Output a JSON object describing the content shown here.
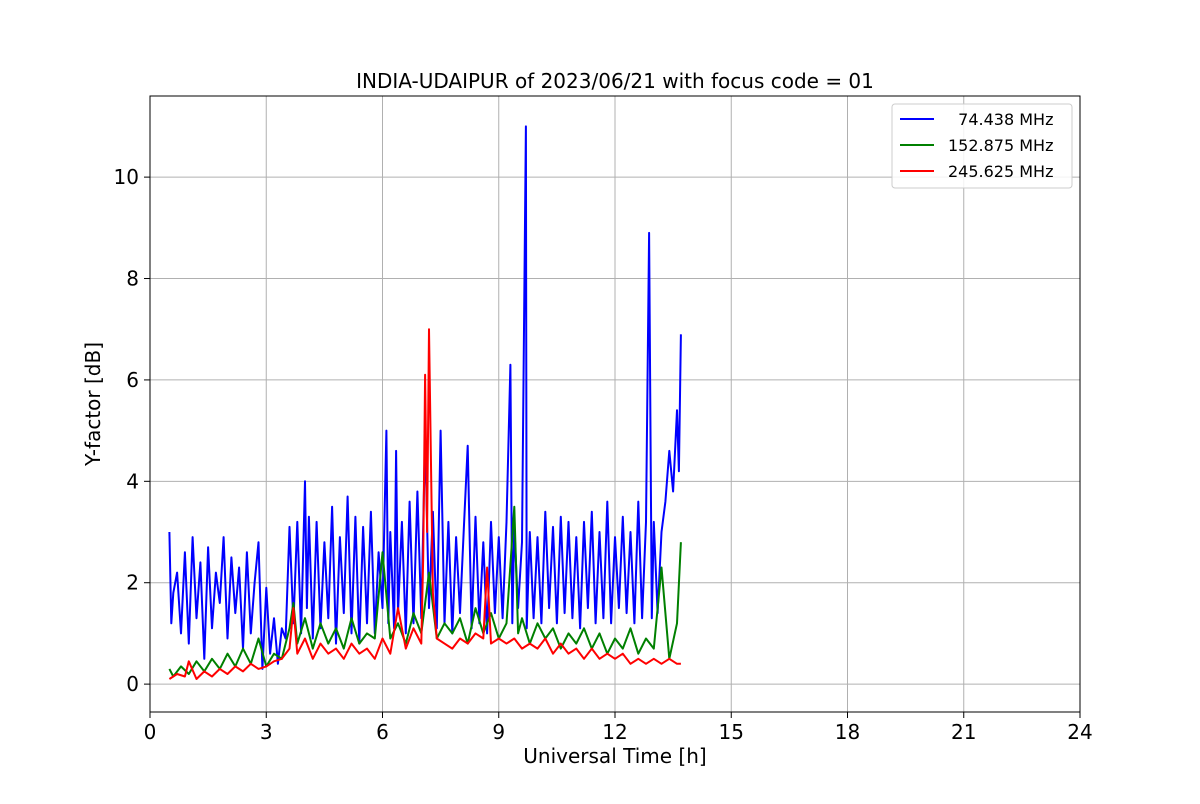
{
  "chart_data": {
    "type": "line",
    "title": "INDIA-UDAIPUR of 2023/06/21 with focus code = 01",
    "xlabel": "Universal Time [h]",
    "ylabel": "Y-factor [dB]",
    "xlim": [
      0,
      24
    ],
    "ylim": [
      -0.55,
      11.6
    ],
    "xticks": [
      0,
      3,
      6,
      9,
      12,
      15,
      18,
      21,
      24
    ],
    "yticks": [
      0,
      2,
      4,
      6,
      8,
      10
    ],
    "xtick_labels": [
      "0",
      "3",
      "6",
      "9",
      "12",
      "15",
      "18",
      "21",
      "24"
    ],
    "ytick_labels": [
      "0",
      "2",
      "4",
      "6",
      "8",
      "10"
    ],
    "grid": true,
    "legend_position": "top-right",
    "series": [
      {
        "name": "  74.438 MHz",
        "color": "#0000ff",
        "x": [
          0.5,
          0.55,
          0.6,
          0.7,
          0.8,
          0.9,
          1.0,
          1.1,
          1.2,
          1.3,
          1.4,
          1.5,
          1.6,
          1.7,
          1.8,
          1.9,
          2.0,
          2.1,
          2.2,
          2.3,
          2.4,
          2.5,
          2.6,
          2.7,
          2.8,
          2.9,
          3.0,
          3.1,
          3.2,
          3.3,
          3.4,
          3.5,
          3.6,
          3.7,
          3.8,
          3.9,
          4.0,
          4.05,
          4.1,
          4.2,
          4.3,
          4.4,
          4.5,
          4.6,
          4.7,
          4.8,
          4.9,
          5.0,
          5.1,
          5.2,
          5.3,
          5.4,
          5.5,
          5.6,
          5.7,
          5.8,
          5.9,
          6.0,
          6.1,
          6.15,
          6.2,
          6.3,
          6.35,
          6.4,
          6.5,
          6.6,
          6.7,
          6.8,
          6.9,
          7.0,
          7.1,
          7.2,
          7.3,
          7.4,
          7.5,
          7.6,
          7.7,
          7.8,
          7.9,
          8.0,
          8.1,
          8.2,
          8.3,
          8.4,
          8.5,
          8.6,
          8.7,
          8.8,
          8.9,
          9.0,
          9.1,
          9.2,
          9.3,
          9.35,
          9.4,
          9.5,
          9.6,
          9.7,
          9.72,
          9.8,
          9.9,
          10.0,
          10.1,
          10.2,
          10.3,
          10.4,
          10.5,
          10.6,
          10.7,
          10.8,
          10.9,
          11.0,
          11.1,
          11.2,
          11.3,
          11.4,
          11.5,
          11.6,
          11.7,
          11.8,
          11.9,
          12.0,
          12.1,
          12.2,
          12.3,
          12.4,
          12.5,
          12.6,
          12.7,
          12.8,
          12.88,
          12.95,
          13.0,
          13.1,
          13.2,
          13.3,
          13.4,
          13.5,
          13.6,
          13.65,
          13.7
        ],
        "y": [
          3.0,
          1.2,
          1.8,
          2.2,
          1.0,
          2.6,
          0.8,
          2.9,
          1.3,
          2.4,
          0.5,
          2.7,
          1.1,
          2.2,
          1.6,
          2.9,
          0.9,
          2.5,
          1.4,
          2.3,
          0.7,
          2.6,
          1.0,
          2.0,
          2.8,
          0.3,
          1.9,
          0.6,
          1.3,
          0.4,
          1.1,
          0.9,
          3.1,
          1.2,
          3.2,
          1.0,
          4.0,
          1.5,
          3.3,
          0.9,
          3.2,
          1.1,
          2.8,
          1.3,
          3.5,
          0.8,
          2.9,
          1.4,
          3.7,
          1.0,
          3.3,
          0.8,
          3.1,
          1.2,
          3.4,
          1.0,
          2.6,
          1.5,
          5.0,
          1.2,
          3.0,
          1.1,
          4.6,
          1.4,
          3.2,
          1.0,
          3.6,
          1.2,
          3.8,
          1.3,
          4.9,
          1.5,
          3.4,
          1.1,
          5.0,
          1.2,
          3.2,
          1.0,
          2.9,
          1.4,
          3.1,
          4.7,
          1.1,
          3.3,
          1.2,
          2.8,
          1.0,
          3.2,
          1.4,
          2.9,
          1.3,
          3.2,
          6.3,
          1.2,
          3.1,
          1.5,
          2.8,
          11.0,
          1.1,
          3.0,
          1.3,
          2.9,
          1.2,
          3.4,
          1.5,
          3.1,
          1.2,
          3.3,
          1.4,
          3.2,
          1.3,
          2.9,
          1.1,
          3.2,
          1.5,
          3.4,
          1.2,
          3.0,
          1.3,
          3.6,
          1.2,
          2.9,
          1.5,
          3.3,
          1.4,
          3.0,
          1.2,
          3.6,
          1.3,
          3.2,
          8.9,
          1.3,
          3.2,
          1.4,
          3.0,
          3.6,
          4.6,
          3.8,
          5.4,
          4.2,
          6.9
        ]
      },
      {
        "name": "152.875 MHz",
        "color": "#008000",
        "x": [
          0.5,
          0.6,
          0.8,
          1.0,
          1.2,
          1.4,
          1.6,
          1.8,
          2.0,
          2.2,
          2.4,
          2.6,
          2.8,
          3.0,
          3.2,
          3.4,
          3.6,
          3.7,
          3.8,
          4.0,
          4.2,
          4.4,
          4.6,
          4.8,
          5.0,
          5.2,
          5.4,
          5.6,
          5.8,
          6.0,
          6.2,
          6.4,
          6.6,
          6.8,
          7.0,
          7.2,
          7.4,
          7.6,
          7.8,
          8.0,
          8.2,
          8.4,
          8.6,
          8.8,
          9.0,
          9.2,
          9.4,
          9.5,
          9.6,
          9.8,
          10.0,
          10.2,
          10.4,
          10.6,
          10.8,
          11.0,
          11.2,
          11.4,
          11.6,
          11.8,
          12.0,
          12.2,
          12.4,
          12.6,
          12.8,
          13.0,
          13.2,
          13.4,
          13.6,
          13.7
        ],
        "y": [
          0.3,
          0.15,
          0.35,
          0.2,
          0.45,
          0.25,
          0.5,
          0.3,
          0.6,
          0.35,
          0.7,
          0.4,
          0.9,
          0.35,
          0.6,
          0.5,
          1.1,
          1.6,
          0.8,
          1.3,
          0.7,
          1.2,
          0.8,
          1.1,
          0.7,
          1.3,
          0.8,
          1.0,
          0.9,
          2.6,
          0.9,
          1.2,
          0.8,
          1.4,
          1.0,
          2.2,
          0.9,
          1.2,
          1.0,
          1.3,
          0.8,
          1.5,
          1.0,
          1.4,
          0.9,
          1.2,
          3.5,
          1.0,
          1.3,
          0.8,
          1.2,
          0.9,
          1.1,
          0.7,
          1.0,
          0.8,
          1.1,
          0.7,
          1.0,
          0.6,
          0.9,
          0.7,
          1.1,
          0.6,
          0.9,
          0.7,
          2.3,
          0.5,
          1.2,
          2.8
        ]
      },
      {
        "name": "245.625 MHz",
        "color": "#ff0000",
        "x": [
          0.5,
          0.7,
          0.9,
          1.0,
          1.2,
          1.4,
          1.6,
          1.8,
          2.0,
          2.2,
          2.4,
          2.6,
          2.8,
          3.0,
          3.2,
          3.4,
          3.6,
          3.7,
          3.8,
          4.0,
          4.2,
          4.4,
          4.6,
          4.8,
          5.0,
          5.2,
          5.4,
          5.6,
          5.8,
          6.0,
          6.2,
          6.4,
          6.6,
          6.8,
          7.0,
          7.05,
          7.1,
          7.15,
          7.2,
          7.3,
          7.4,
          7.6,
          7.8,
          8.0,
          8.2,
          8.4,
          8.6,
          8.7,
          8.8,
          9.0,
          9.2,
          9.4,
          9.6,
          9.8,
          10.0,
          10.2,
          10.4,
          10.6,
          10.8,
          11.0,
          11.2,
          11.4,
          11.6,
          11.8,
          12.0,
          12.2,
          12.4,
          12.6,
          12.8,
          13.0,
          13.2,
          13.4,
          13.6,
          13.7
        ],
        "y": [
          0.1,
          0.2,
          0.15,
          0.45,
          0.1,
          0.25,
          0.15,
          0.3,
          0.2,
          0.35,
          0.25,
          0.4,
          0.3,
          0.35,
          0.45,
          0.5,
          0.7,
          1.5,
          0.6,
          0.9,
          0.5,
          0.8,
          0.6,
          0.7,
          0.5,
          0.8,
          0.6,
          0.7,
          0.5,
          0.9,
          0.6,
          1.5,
          0.7,
          1.1,
          0.8,
          2.5,
          6.1,
          3.0,
          7.0,
          1.8,
          0.9,
          0.8,
          0.7,
          0.9,
          0.8,
          1.0,
          0.9,
          2.3,
          0.8,
          0.9,
          0.8,
          0.9,
          0.7,
          0.8,
          0.7,
          0.9,
          0.6,
          0.8,
          0.6,
          0.7,
          0.5,
          0.7,
          0.5,
          0.6,
          0.5,
          0.6,
          0.4,
          0.5,
          0.4,
          0.5,
          0.4,
          0.5,
          0.4,
          0.4
        ]
      }
    ]
  }
}
